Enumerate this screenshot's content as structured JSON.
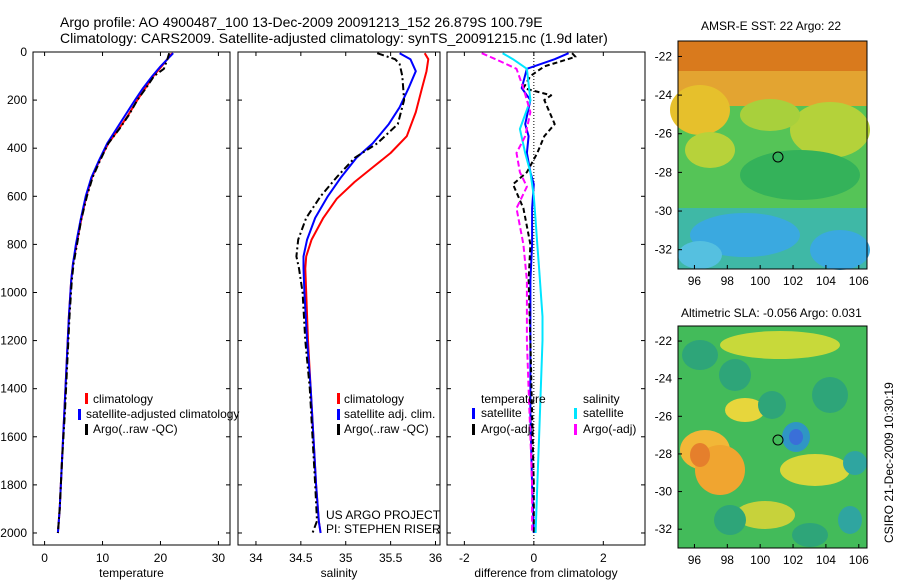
{
  "header": {
    "line1": "Argo profile: AO 4900487_100 13-Dec-2009 20091213_152 26.879S 100.79E",
    "line2": "Climatology: CARS2009. Satellite-adjusted climatology: synTS_20091215.nc (1.9d later)"
  },
  "side_stamp": "CSIRO 21-Dec-2009 10:30:19",
  "colors": {
    "climatology": "#ff0000",
    "satellite": "#0000ff",
    "argo": "#000000",
    "satellite_salinity": "#00e5ff",
    "argo_salinity": "#ff00ff"
  },
  "chart_data": [
    {
      "type": "line",
      "id": "temperature",
      "xlabel": "temperature",
      "xlim": [
        -2,
        32
      ],
      "ylim": [
        2050,
        0
      ],
      "xticks": [
        0,
        10,
        20,
        30
      ],
      "yticks": [
        0,
        200,
        400,
        600,
        800,
        1000,
        1200,
        1400,
        1600,
        1800,
        2000
      ],
      "legend": [
        "climatology",
        "satellite-adjusted climatology",
        "Argo(..raw -QC)"
      ],
      "series": [
        {
          "name": "climatology",
          "color": "climatology",
          "dash": "",
          "x": [
            22.0,
            21.5,
            20.2,
            18.8,
            17.4,
            16.0,
            14.5,
            12.8,
            11.0,
            9.5,
            8.2,
            7.2,
            6.3,
            5.5,
            4.9,
            4.6,
            4.2,
            3.8,
            3.4,
            3.0,
            2.6,
            2.3
          ],
          "y": [
            5,
            20,
            60,
            100,
            150,
            200,
            260,
            320,
            380,
            450,
            520,
            600,
            700,
            800,
            880,
            950,
            1100,
            1300,
            1500,
            1700,
            1900,
            2000
          ]
        },
        {
          "name": "satellite-adjusted climatology",
          "color": "satellite",
          "dash": "",
          "x": [
            22.2,
            21.6,
            20.0,
            18.6,
            17.0,
            15.6,
            14.0,
            12.4,
            10.8,
            9.4,
            8.1,
            7.1,
            6.2,
            5.4,
            4.9,
            4.6,
            4.2,
            3.8,
            3.4,
            3.0,
            2.6,
            2.3
          ],
          "y": [
            5,
            20,
            60,
            100,
            150,
            200,
            260,
            320,
            380,
            450,
            520,
            600,
            700,
            800,
            880,
            950,
            1100,
            1300,
            1500,
            1700,
            1900,
            2000
          ]
        },
        {
          "name": "Argo(..raw -QC)",
          "color": "argo",
          "dash": "7,3,2,3",
          "x": [
            21.5,
            21.2,
            20.6,
            18.9,
            17.5,
            16.0,
            14.6,
            12.9,
            11.0,
            9.6,
            8.3,
            7.3,
            6.3,
            5.6,
            5.0,
            4.7,
            4.3,
            3.9,
            3.5,
            3.0,
            2.6,
            2.3
          ],
          "y": [
            5,
            30,
            70,
            100,
            150,
            200,
            260,
            320,
            380,
            450,
            520,
            600,
            700,
            800,
            880,
            950,
            1100,
            1300,
            1500,
            1700,
            1900,
            2000
          ]
        }
      ]
    },
    {
      "type": "line",
      "id": "salinity",
      "xlabel": "salinity",
      "xlim": [
        33.8,
        36.05
      ],
      "ylim": [
        2050,
        0
      ],
      "xticks": [
        34,
        34.5,
        35,
        35.5,
        36
      ],
      "xticklabels": [
        "34",
        "34.5",
        "35",
        "35.5",
        "36"
      ],
      "legend": [
        "climatology",
        "satellite adj. clim.",
        "Argo(..raw -QC)"
      ],
      "annotation": [
        "US ARGO PROJECT",
        "PI: STEPHEN RISER"
      ],
      "series": [
        {
          "name": "climatology",
          "color": "climatology",
          "dash": "",
          "x": [
            35.88,
            35.92,
            35.9,
            35.85,
            35.78,
            35.68,
            35.5,
            35.3,
            35.1,
            34.9,
            34.75,
            34.62,
            34.56,
            34.55,
            34.56,
            34.58,
            34.61,
            34.64,
            34.67,
            34.7,
            34.72
          ],
          "y": [
            5,
            30,
            80,
            150,
            250,
            350,
            420,
            480,
            540,
            610,
            690,
            780,
            850,
            900,
            1000,
            1200,
            1400,
            1600,
            1800,
            1950,
            2000
          ]
        },
        {
          "name": "satellite adj. clim.",
          "color": "satellite",
          "dash": "",
          "x": [
            35.6,
            35.72,
            35.78,
            35.7,
            35.6,
            35.48,
            35.3,
            35.12,
            34.95,
            34.8,
            34.66,
            34.57,
            34.53,
            34.53,
            34.54,
            34.57,
            34.61,
            34.64,
            34.67,
            34.7,
            34.72
          ],
          "y": [
            5,
            30,
            80,
            150,
            230,
            300,
            380,
            440,
            520,
            600,
            690,
            780,
            850,
            900,
            1000,
            1200,
            1400,
            1600,
            1800,
            1950,
            2000
          ]
        },
        {
          "name": "Argo(..raw -QC)",
          "color": "argo",
          "dash": "7,3,2,3",
          "x": [
            35.35,
            35.55,
            35.6,
            35.63,
            35.65,
            35.58,
            35.35,
            35.1,
            34.9,
            34.72,
            34.56,
            34.47,
            34.45,
            34.48,
            34.52,
            34.55,
            34.6,
            34.63,
            34.66,
            34.68,
            34.63
          ],
          "y": [
            5,
            30,
            50,
            100,
            200,
            300,
            380,
            440,
            520,
            600,
            690,
            780,
            850,
            900,
            1000,
            1200,
            1400,
            1600,
            1800,
            1950,
            2000
          ]
        }
      ]
    },
    {
      "type": "line",
      "id": "difference",
      "xlabel": "difference from climatology",
      "xlim": [
        -2.5,
        3.2
      ],
      "ylim": [
        2050,
        0
      ],
      "xticks": [
        -2,
        0,
        2
      ],
      "legend": [
        "temperature",
        "satellite",
        "Argo(-adj)",
        "salinity",
        "satellite",
        "Argo(-adj)"
      ],
      "series": [
        {
          "name": "satellite",
          "group": "temperature",
          "color": "satellite",
          "dash": "",
          "x": [
            1.0,
            0.6,
            -0.2,
            -0.35,
            -0.1,
            -0.25,
            -0.15,
            -0.2,
            -0.1,
            0.0,
            -0.05,
            -0.05,
            -0.1,
            -0.1,
            -0.1,
            -0.05,
            0.0
          ],
          "y": [
            5,
            30,
            70,
            150,
            200,
            300,
            350,
            420,
            500,
            550,
            650,
            800,
            950,
            1200,
            1500,
            1800,
            2000
          ]
        },
        {
          "name": "Argo(-adj)",
          "group": "temperature",
          "color": "argo",
          "dash": "5,3",
          "x": [
            1.1,
            1.2,
            0.3,
            -0.1,
            -0.3,
            0.5,
            0.3,
            0.6,
            0.3,
            0.1,
            -0.2,
            -0.6,
            -0.3,
            -0.1,
            -0.15,
            -0.1,
            -0.05,
            0.0,
            0.0
          ],
          "y": [
            5,
            20,
            60,
            100,
            150,
            180,
            200,
            300,
            350,
            420,
            500,
            550,
            650,
            800,
            950,
            1200,
            1500,
            1800,
            2000
          ]
        },
        {
          "name": "satellite",
          "group": "salinity",
          "color": "satellite_salinity",
          "dash": "",
          "x": [
            -0.9,
            -0.6,
            -0.2,
            -0.1,
            -0.4,
            -0.25,
            -0.1,
            0.0,
            0.05,
            0.1,
            0.15,
            0.2,
            0.25,
            0.25,
            0.2,
            0.15,
            0.1,
            0.05
          ],
          "y": [
            5,
            30,
            70,
            200,
            320,
            420,
            500,
            600,
            700,
            800,
            900,
            1000,
            1100,
            1200,
            1400,
            1600,
            1800,
            2000
          ]
        },
        {
          "name": "Argo(-adj)",
          "group": "salinity",
          "color": "argo_salinity",
          "dash": "6,3",
          "x": [
            -1.5,
            -1.1,
            -0.5,
            -0.3,
            -0.1,
            -0.25,
            -0.5,
            -0.4,
            -0.2,
            -0.5,
            -0.3,
            -0.2,
            -0.2,
            -0.15,
            -0.1,
            -0.05,
            -0.05
          ],
          "y": [
            5,
            30,
            70,
            150,
            250,
            350,
            420,
            500,
            560,
            650,
            800,
            950,
            1200,
            1400,
            1600,
            1800,
            2000
          ]
        }
      ]
    },
    {
      "type": "heatmap",
      "id": "sst_map",
      "title": "AMSR-E SST: 22 Argo: 22",
      "xlim": [
        95,
        106.5
      ],
      "ylim": [
        -33,
        -21.2
      ],
      "xticks": [
        96,
        98,
        100,
        102,
        104,
        106
      ],
      "yticks": [
        -22,
        -24,
        -26,
        -28,
        -30,
        -32
      ],
      "marker": {
        "lon": 100.79,
        "lat": -26.879
      }
    },
    {
      "type": "heatmap",
      "id": "sla_map",
      "title": "Altimetric SLA: -0.056 Argo: 0.031",
      "xlim": [
        95,
        106.5
      ],
      "ylim": [
        -33,
        -21.2
      ],
      "xticks": [
        96,
        98,
        100,
        102,
        104,
        106
      ],
      "yticks": [
        -22,
        -24,
        -26,
        -28,
        -30,
        -32
      ],
      "marker": {
        "lon": 100.79,
        "lat": -26.879
      }
    }
  ]
}
